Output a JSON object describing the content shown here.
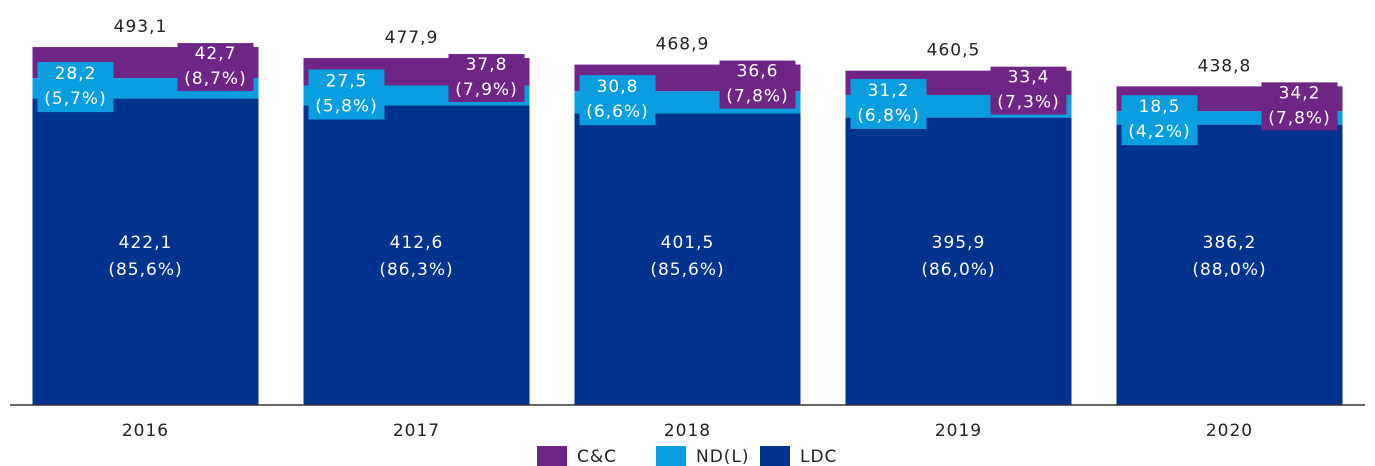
{
  "chart_data": {
    "type": "stacked-bar",
    "categories": [
      "2016",
      "2017",
      "2018",
      "2019",
      "2020"
    ],
    "series": [
      {
        "name": "LDC",
        "color": "#00338d",
        "values": [
          422.1,
          412.6,
          401.5,
          395.9,
          386.2
        ],
        "value_labels": [
          "422,1",
          "412,6",
          "401,5",
          "395,9",
          "386,2"
        ],
        "share_labels": [
          "(85,6%)",
          "(86,3%)",
          "(85,6%)",
          "(86,0%)",
          "(88,0%)"
        ]
      },
      {
        "name": "ND(L)",
        "color": "#0a9ee0",
        "values": [
          28.2,
          27.5,
          30.8,
          31.2,
          18.5
        ],
        "value_labels": [
          "28,2",
          "27,5",
          "30,8",
          "31,2",
          "18,5"
        ],
        "share_labels": [
          "(5,7%)",
          "(5,8%)",
          "(6,6%)",
          "(6,8%)",
          "(4,2%)"
        ]
      },
      {
        "name": "C&C",
        "color": "#6e2585",
        "values": [
          42.7,
          37.8,
          36.6,
          33.4,
          34.2
        ],
        "value_labels": [
          "42,7",
          "37,8",
          "36,6",
          "33,4",
          "34,2"
        ],
        "share_labels": [
          "(8,7%)",
          "(7,9%)",
          "(7,8%)",
          "(7,3%)",
          "(7,8%)"
        ]
      }
    ],
    "totals": [
      493.1,
      477.9,
      468.9,
      460.5,
      438.8
    ],
    "total_labels": [
      "493,1",
      "477,9",
      "468,9",
      "460,5",
      "438,8"
    ],
    "ylim": [
      0,
      500
    ]
  }
}
